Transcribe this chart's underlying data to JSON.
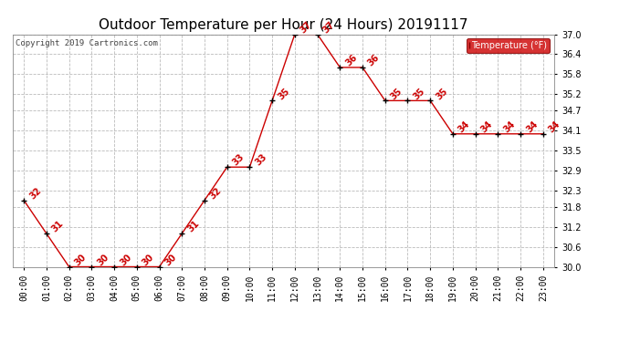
{
  "title": "Outdoor Temperature per Hour (24 Hours) 20191117",
  "copyright_text": "Copyright 2019 Cartronics.com",
  "legend_label": "Temperature (°F)",
  "hours": [
    0,
    1,
    2,
    3,
    4,
    5,
    6,
    7,
    8,
    9,
    10,
    11,
    12,
    13,
    14,
    15,
    16,
    17,
    18,
    19,
    20,
    21,
    22,
    23
  ],
  "temps": [
    32,
    31,
    30,
    30,
    30,
    30,
    30,
    31,
    32,
    33,
    33,
    35,
    37,
    37,
    36,
    36,
    35,
    35,
    35,
    34,
    34,
    34,
    34,
    34
  ],
  "ylim": [
    30.0,
    37.0
  ],
  "yticks": [
    30.0,
    30.6,
    31.2,
    31.8,
    32.3,
    32.9,
    33.5,
    34.1,
    34.7,
    35.2,
    35.8,
    36.4,
    37.0
  ],
  "line_color": "#cc0000",
  "marker_color": "#000000",
  "bg_color": "#ffffff",
  "grid_color": "#bbbbbb",
  "title_fontsize": 11,
  "label_fontsize": 7,
  "annotation_fontsize": 7,
  "legend_bg": "#cc0000",
  "legend_fg": "#ffffff",
  "copyright_fontsize": 6.5
}
